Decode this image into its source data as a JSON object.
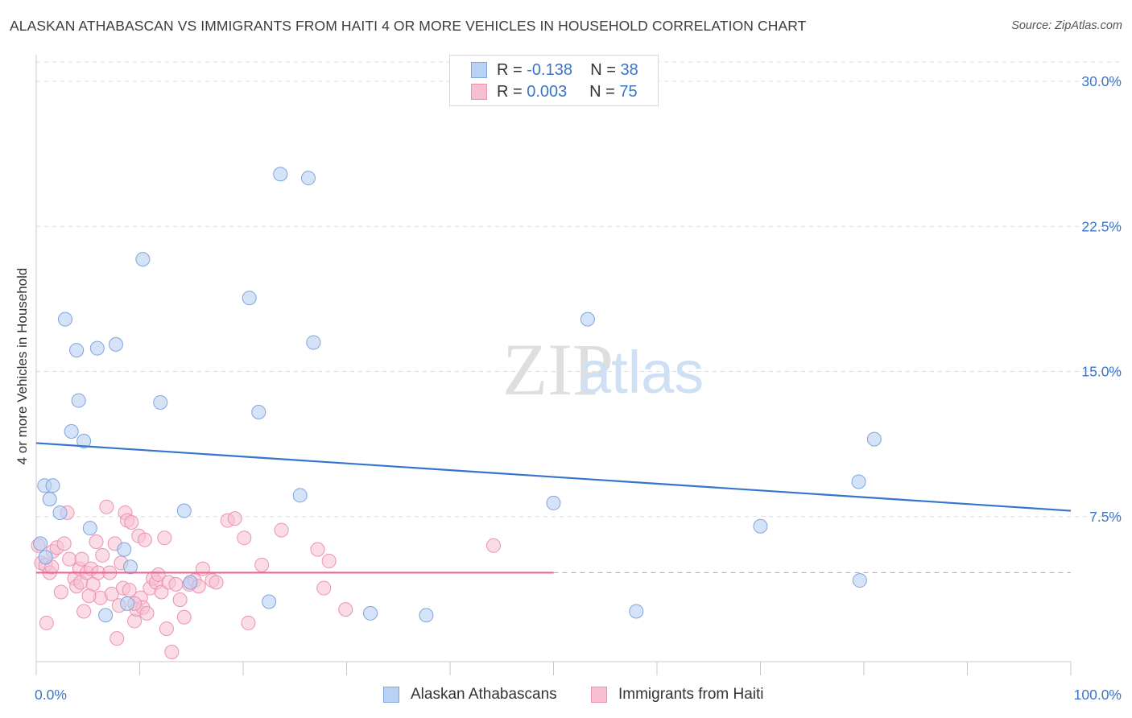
{
  "title": "ALASKAN ATHABASCAN VS IMMIGRANTS FROM HAITI 4 OR MORE VEHICLES IN HOUSEHOLD CORRELATION CHART",
  "source": "Source: ZipAtlas.com",
  "watermark": {
    "zip": "ZIP",
    "atlas": "atlas"
  },
  "legend_top": [
    {
      "r_label": "R =",
      "r_value": "-0.138",
      "n_label": "N =",
      "n_value": "38"
    },
    {
      "r_label": "R =",
      "r_value": "0.003",
      "n_label": "N =",
      "n_value": "75"
    }
  ],
  "colors": {
    "blue_fill": "#b9d1f3",
    "blue_stroke": "#7ea5dc",
    "blue_line": "#3574cf",
    "pink_fill": "#f7c0d2",
    "pink_stroke": "#ea93b0",
    "pink_line": "#e8698f",
    "accent_text": "#3b74c9",
    "grid": "#dcdcdc"
  },
  "chart_data": {
    "type": "scatter",
    "title": "ALASKAN ATHABASCAN VS IMMIGRANTS FROM HAITI 4 OR MORE VEHICLES IN HOUSEHOLD CORRELATION CHART",
    "xlabel": "",
    "ylabel": "4 or more Vehicles in Household",
    "xlim": [
      0,
      100
    ],
    "ylim": [
      0,
      31
    ],
    "x_tick_labels": [
      "0.0%",
      "100.0%"
    ],
    "y_ticks": [
      7.5,
      15.0,
      22.5,
      30.0
    ],
    "y_tick_labels": [
      "7.5%",
      "15.0%",
      "22.5%",
      "30.0%"
    ],
    "legend_position": "bottom",
    "series": [
      {
        "name": "Alaskan Athabascans",
        "r": -0.138,
        "n": 38,
        "trend": {
          "x0": 0,
          "y0": 11.3,
          "x1": 100,
          "y1": 7.8
        },
        "points": [
          [
            0.8,
            9.1
          ],
          [
            1.3,
            8.4
          ],
          [
            1.6,
            9.1
          ],
          [
            2.3,
            7.7
          ],
          [
            2.8,
            17.7
          ],
          [
            3.4,
            11.9
          ],
          [
            3.9,
            16.1
          ],
          [
            4.1,
            13.5
          ],
          [
            4.6,
            11.4
          ],
          [
            5.2,
            6.9
          ],
          [
            5.9,
            16.2
          ],
          [
            6.7,
            2.4
          ],
          [
            7.7,
            16.4
          ],
          [
            8.5,
            5.8
          ],
          [
            8.8,
            3.0
          ],
          [
            9.1,
            4.9
          ],
          [
            10.3,
            20.8
          ],
          [
            12.0,
            13.4
          ],
          [
            14.3,
            7.8
          ],
          [
            14.9,
            4.1
          ],
          [
            20.6,
            18.8
          ],
          [
            21.5,
            12.9
          ],
          [
            22.5,
            3.1
          ],
          [
            23.6,
            25.2
          ],
          [
            25.5,
            8.6
          ],
          [
            26.3,
            25.0
          ],
          [
            26.8,
            16.5
          ],
          [
            32.3,
            2.5
          ],
          [
            37.7,
            2.4
          ],
          [
            50.0,
            8.2
          ],
          [
            53.3,
            17.7
          ],
          [
            58.0,
            2.6
          ],
          [
            70.0,
            7.0
          ],
          [
            79.5,
            9.3
          ],
          [
            79.6,
            4.2
          ],
          [
            81.0,
            11.5
          ],
          [
            0.4,
            6.1
          ],
          [
            0.9,
            5.4
          ]
        ]
      },
      {
        "name": "Immigrants from Haiti",
        "r": 0.003,
        "n": 75,
        "trend": {
          "x0": 0,
          "y0": 4.6,
          "x1": 50,
          "y1": 4.6,
          "dash_to": 100
        },
        "points": [
          [
            0.2,
            6.0
          ],
          [
            0.5,
            5.1
          ],
          [
            0.9,
            5.0
          ],
          [
            1.0,
            2.0
          ],
          [
            1.3,
            4.6
          ],
          [
            1.5,
            4.9
          ],
          [
            1.6,
            5.7
          ],
          [
            2.0,
            5.9
          ],
          [
            2.4,
            3.6
          ],
          [
            2.7,
            6.1
          ],
          [
            3.0,
            7.7
          ],
          [
            3.2,
            5.3
          ],
          [
            3.7,
            4.3
          ],
          [
            3.9,
            3.9
          ],
          [
            4.2,
            4.8
          ],
          [
            4.3,
            4.1
          ],
          [
            4.4,
            5.3
          ],
          [
            4.6,
            2.6
          ],
          [
            4.9,
            4.6
          ],
          [
            5.3,
            4.8
          ],
          [
            5.5,
            4.0
          ],
          [
            5.8,
            6.2
          ],
          [
            6.0,
            4.6
          ],
          [
            6.2,
            3.3
          ],
          [
            6.4,
            5.5
          ],
          [
            6.8,
            8.0
          ],
          [
            7.1,
            4.6
          ],
          [
            7.3,
            3.5
          ],
          [
            7.6,
            6.1
          ],
          [
            7.8,
            1.2
          ],
          [
            8.0,
            2.9
          ],
          [
            8.2,
            5.1
          ],
          [
            8.4,
            3.8
          ],
          [
            8.6,
            7.7
          ],
          [
            8.8,
            7.3
          ],
          [
            9.0,
            3.7
          ],
          [
            9.2,
            7.2
          ],
          [
            9.5,
            2.1
          ],
          [
            9.7,
            2.7
          ],
          [
            9.9,
            6.5
          ],
          [
            10.1,
            3.3
          ],
          [
            10.3,
            2.8
          ],
          [
            10.5,
            6.3
          ],
          [
            10.7,
            2.5
          ],
          [
            11.0,
            3.8
          ],
          [
            11.3,
            4.3
          ],
          [
            11.6,
            4.1
          ],
          [
            11.8,
            4.5
          ],
          [
            12.1,
            3.6
          ],
          [
            12.4,
            6.4
          ],
          [
            12.6,
            1.7
          ],
          [
            12.8,
            4.1
          ],
          [
            13.1,
            0.5
          ],
          [
            13.5,
            4.0
          ],
          [
            13.9,
            3.2
          ],
          [
            14.3,
            2.3
          ],
          [
            14.8,
            4.0
          ],
          [
            15.3,
            4.2
          ],
          [
            15.7,
            3.9
          ],
          [
            16.1,
            4.8
          ],
          [
            17.0,
            4.2
          ],
          [
            17.4,
            4.1
          ],
          [
            18.5,
            7.3
          ],
          [
            19.2,
            7.4
          ],
          [
            20.1,
            6.4
          ],
          [
            20.5,
            2.0
          ],
          [
            21.8,
            5.0
          ],
          [
            23.7,
            6.8
          ],
          [
            27.2,
            5.8
          ],
          [
            27.8,
            3.8
          ],
          [
            28.3,
            5.2
          ],
          [
            29.9,
            2.7
          ],
          [
            44.2,
            6.0
          ],
          [
            9.5,
            3.0
          ],
          [
            5.1,
            3.4
          ]
        ]
      }
    ]
  }
}
